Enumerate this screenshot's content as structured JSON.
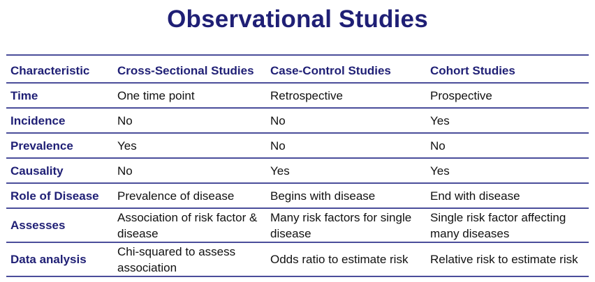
{
  "title": "Observational Studies",
  "table": {
    "headers": [
      "Characteristic",
      "Cross-Sectional Studies",
      "Case-Control Studies",
      "Cohort Studies"
    ],
    "rows": [
      {
        "label": "Time",
        "cells": [
          "One time point",
          "Retrospective",
          "Prospective"
        ]
      },
      {
        "label": "Incidence",
        "cells": [
          "No",
          "No",
          "Yes"
        ]
      },
      {
        "label": "Prevalence",
        "cells": [
          "Yes",
          "No",
          "No"
        ]
      },
      {
        "label": "Causality",
        "cells": [
          "No",
          "Yes",
          "Yes"
        ]
      },
      {
        "label": "Role of Disease",
        "cells": [
          "Prevalence of disease",
          "Begins with disease",
          "End with disease"
        ]
      },
      {
        "label": "Assesses",
        "cells": [
          "Association of risk factor & disease",
          "Many risk factors for single disease",
          "Single risk factor affecting many diseases"
        ]
      },
      {
        "label": "Data analysis",
        "cells": [
          "Chi-squared to assess association",
          "Odds ratio to estimate risk",
          "Relative risk to estimate risk"
        ]
      }
    ]
  },
  "colors": {
    "title": "#1f1f75",
    "rule": "#4a4d9a",
    "text": "#111111"
  }
}
